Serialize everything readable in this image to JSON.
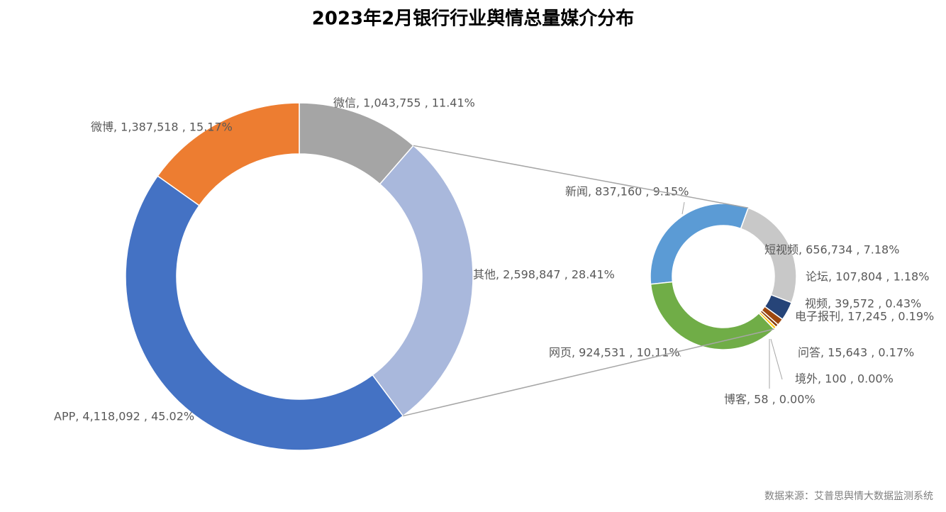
{
  "chart_data": {
    "type": "pie-of-pie",
    "title": "2023年2月银行行业舆情总量媒介分布",
    "source": "数据来源：艾普思舆情大数据监测系统",
    "primary": {
      "labels": [
        "微信, 1,043,755 , 11.41%",
        "其他, 2,598,847 , 28.41%",
        "APP, 4,118,092 , 45.02%",
        "微博, 1,387,518 , 15.17%"
      ],
      "values": [
        1043755,
        2598847,
        4118092,
        1387518
      ],
      "colors": [
        "#a5a5a5",
        "#a9b8dc",
        "#4472c4",
        "#ed7d31"
      ]
    },
    "secondary": {
      "labels": [
        "新闻, 837,160 , 9.15%",
        "短视频, 656,734 , 7.18%",
        "论坛, 107,804 , 1.18%",
        "视频, 39,572 , 0.43%",
        "电子报刊, 17,245 , 0.19%",
        "问答, 15,643 , 0.17%",
        "境外, 100 , 0.00%",
        "博客, 58 , 0.00%",
        "网页, 924,531 , 10.11%"
      ],
      "values": [
        837160,
        656734,
        107804,
        39572,
        17245,
        15643,
        100,
        58,
        924531
      ],
      "colors": [
        "#5b9bd5",
        "#c8c8c8",
        "#264478",
        "#9e480e",
        "#843c0c",
        "#ffc000",
        "#636363",
        "#997300",
        "#70ad47"
      ]
    }
  }
}
